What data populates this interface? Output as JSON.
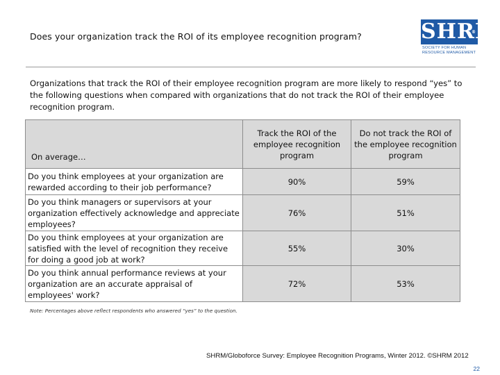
{
  "title": "Does your organization track the ROI of its employee recognition program?",
  "logo": {
    "text": "SHRM",
    "registered": "®",
    "line1": "SOCIETY FOR HUMAN",
    "line2": "RESOURCE MANAGEMENT"
  },
  "intro": "Organizations that track the ROI of their employee recognition program are more likely to respond “yes” to the following questions when compared with organizations that do not track the ROI of their employee recognition program.",
  "table": {
    "row_header": "On average…",
    "col1_header": "Track the ROI of the employee recognition program",
    "col2_header": "Do not track the ROI of the employee recognition program",
    "rows": [
      {
        "question": "Do you think employees at your organization are rewarded according to their job performance?",
        "track": "90%",
        "not_track": "59%"
      },
      {
        "question": "Do you think managers or supervisors at your organization effectively acknowledge and appreciate employees?",
        "track": "76%",
        "not_track": "51%"
      },
      {
        "question": "Do you think employees at your organization are satisfied with the level of recognition they receive for doing a good job at work?",
        "track": "55%",
        "not_track": "30%"
      },
      {
        "question": "Do you think annual performance reviews at your organization are an accurate appraisal of employees' work?",
        "track": "72%",
        "not_track": "53%"
      }
    ]
  },
  "note": "Note: Percentages above reflect respondents who answered “yes” to the question.",
  "source": "SHRM/Globoforce Survey: Employee Recognition Programs, Winter 2012. ©SHRM 2012",
  "page_number": "22"
}
